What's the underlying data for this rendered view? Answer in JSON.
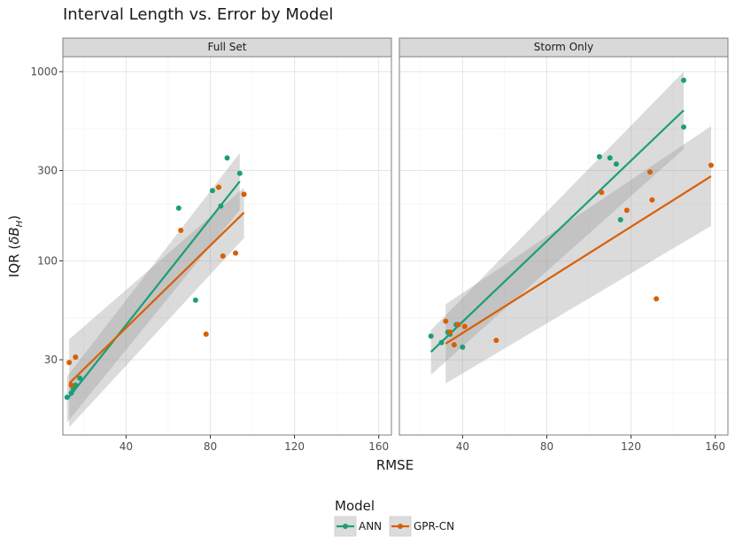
{
  "chart_data": {
    "type": "scatter",
    "title": "Interval Length vs. Error by Model",
    "xlabel": "RMSE",
    "ylabel": "IQR (δB_H)",
    "y_scale": "log10",
    "xlim": [
      10,
      166
    ],
    "ylim": [
      12,
      1200
    ],
    "x_ticks": [
      40,
      80,
      120,
      160
    ],
    "x_tick_labels": [
      "40",
      "80",
      "120",
      "160"
    ],
    "y_ticks": [
      30,
      100,
      300,
      1000
    ],
    "y_tick_labels": [
      "30",
      "100",
      "300",
      "1000"
    ],
    "grid": true,
    "legend": {
      "title": "Model",
      "position": "bottom",
      "entries": [
        "ANN",
        "GPR-CN"
      ]
    },
    "colors": {
      "ANN": "#1b9e77",
      "GPR-CN": "#d95f02"
    },
    "panels": [
      {
        "label": "Full Set",
        "series": [
          {
            "name": "ANN",
            "points": [
              [
                12,
                19
              ],
              [
                14,
                20
              ],
              [
                15,
                21
              ],
              [
                16,
                22
              ],
              [
                18,
                24
              ],
              [
                65,
                190
              ],
              [
                73,
                62
              ],
              [
                81,
                235
              ],
              [
                85,
                195
              ],
              [
                88,
                350
              ],
              [
                94,
                290
              ]
            ],
            "fit": {
              "x": [
                12,
                94
              ],
              "y": [
                18.5,
                263
              ]
            },
            "band_upper": [
              24.5,
              372
            ],
            "band_lower": [
              14.0,
              186
            ]
          },
          {
            "name": "GPR-CN",
            "points": [
              [
                13,
                29
              ],
              [
                14,
                22
              ],
              [
                16,
                31
              ],
              [
                66,
                145
              ],
              [
                78,
                41
              ],
              [
                84,
                245
              ],
              [
                86,
                106
              ],
              [
                92,
                110
              ],
              [
                96,
                225
              ]
            ],
            "fit": {
              "x": [
                13,
                96
              ],
              "y": [
                22.5,
                180
              ]
            },
            "band_upper": [
              38.5,
              244
            ],
            "band_lower": [
              13.2,
              132
            ]
          }
        ]
      },
      {
        "label": "Storm Only",
        "series": [
          {
            "name": "ANN",
            "points": [
              [
                25,
                40
              ],
              [
                30,
                37
              ],
              [
                33,
                42
              ],
              [
                34,
                41
              ],
              [
                37,
                46
              ],
              [
                40,
                35
              ],
              [
                105,
                355
              ],
              [
                110,
                350
              ],
              [
                113,
                325
              ],
              [
                115,
                165
              ],
              [
                145,
                900
              ],
              [
                145,
                510
              ]
            ],
            "fit": {
              "x": [
                25,
                145
              ],
              "y": [
                33,
                625
              ]
            },
            "band_upper": [
              43,
              1000
            ],
            "band_lower": [
              25,
              390
            ]
          },
          {
            "name": "GPR-CN",
            "points": [
              [
                32,
                48
              ],
              [
                34,
                42
              ],
              [
                36,
                36
              ],
              [
                38,
                46
              ],
              [
                41,
                45
              ],
              [
                56,
                38
              ],
              [
                106,
                230
              ],
              [
                118,
                185
              ],
              [
                129,
                295
              ],
              [
                130,
                210
              ],
              [
                132,
                63
              ],
              [
                158,
                320
              ]
            ],
            "fit": {
              "x": [
                32,
                158
              ],
              "y": [
                36.5,
                280
              ]
            },
            "band_upper": [
              59,
              515
            ],
            "band_lower": [
              22.5,
              153
            ]
          }
        ]
      }
    ]
  }
}
